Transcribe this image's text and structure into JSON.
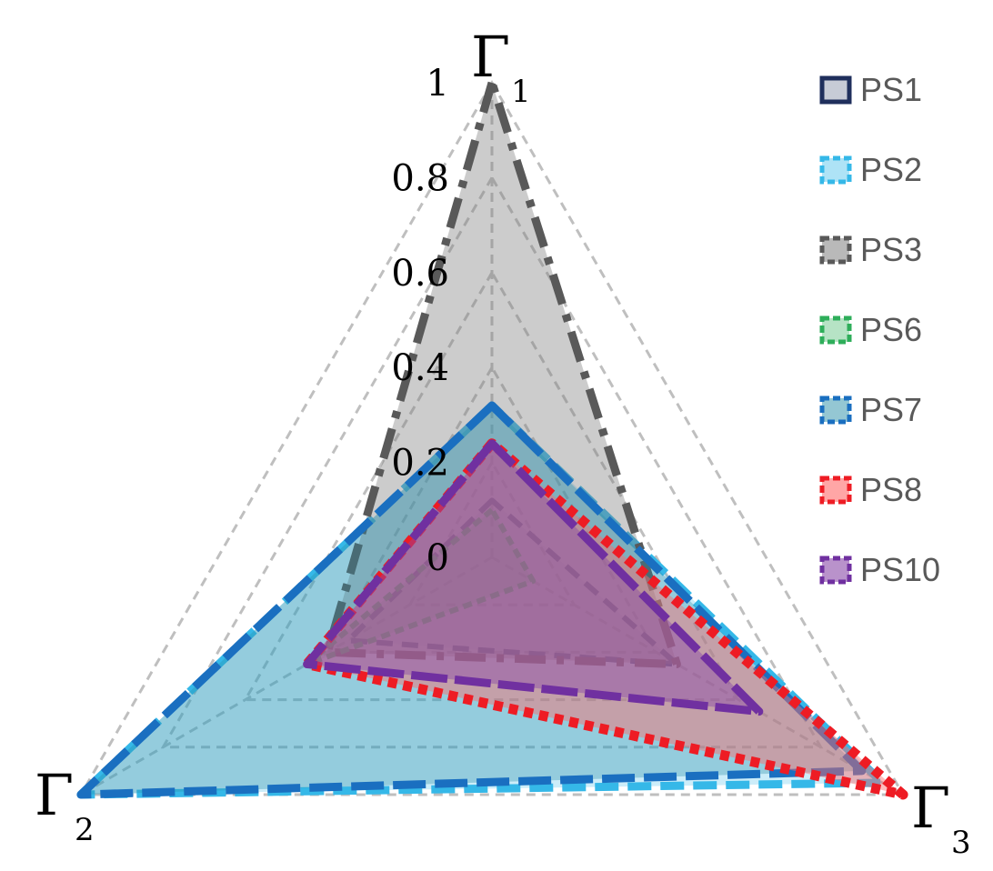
{
  "chart_data": {
    "type": "radar",
    "axes": [
      {
        "symbol": "Γ",
        "sub": "1"
      },
      {
        "symbol": "Γ",
        "sub": "2"
      },
      {
        "symbol": "Γ",
        "sub": "3"
      }
    ],
    "ticks": [
      "0",
      "0.2",
      "0.4",
      "0.6",
      "0.8",
      "1"
    ],
    "range": [
      0,
      1
    ],
    "grid": true,
    "legend_position": "top-right",
    "series": [
      {
        "name": "PS1",
        "values": [
          0.12,
          0.35,
          0.45
        ],
        "color": "#1f2f5c",
        "fill": "#1f2f5c",
        "fill_opacity": 0.1,
        "dash": "18,10",
        "width": 6
      },
      {
        "name": "PS2",
        "values": [
          0.32,
          1.0,
          0.95
        ],
        "color": "#35b8e8",
        "fill": "#35b8e8",
        "fill_opacity": 0.25,
        "dash": "26,10",
        "width": 9
      },
      {
        "name": "PS3",
        "values": [
          1.0,
          0.4,
          0.45
        ],
        "color": "#595959",
        "fill": "#808080",
        "fill_opacity": 0.4,
        "dash": "34,12,8,12",
        "width": 9
      },
      {
        "name": "PS6",
        "values": [
          0.1,
          0.45,
          0.1
        ],
        "color": "#2eae5a",
        "fill": "#2eae5a",
        "fill_opacity": 0.2,
        "dash": "10,6",
        "width": 6
      },
      {
        "name": "PS7",
        "values": [
          0.32,
          1.0,
          0.9
        ],
        "color": "#1a6fc0",
        "fill": "#2a8fa8",
        "fill_opacity": 0.35,
        "dash": "36,10",
        "width": 9
      },
      {
        "name": "PS8",
        "values": [
          0.24,
          0.45,
          1.0
        ],
        "color": "#ee1c24",
        "fill": "#ff6b6b",
        "fill_opacity": 0.45,
        "dash": "10,7",
        "width": 11
      },
      {
        "name": "PS10",
        "values": [
          0.24,
          0.45,
          0.65
        ],
        "color": "#7030a0",
        "fill": "#8a4aa8",
        "fill_opacity": 0.45,
        "dash": "40,8",
        "width": 9
      }
    ]
  }
}
